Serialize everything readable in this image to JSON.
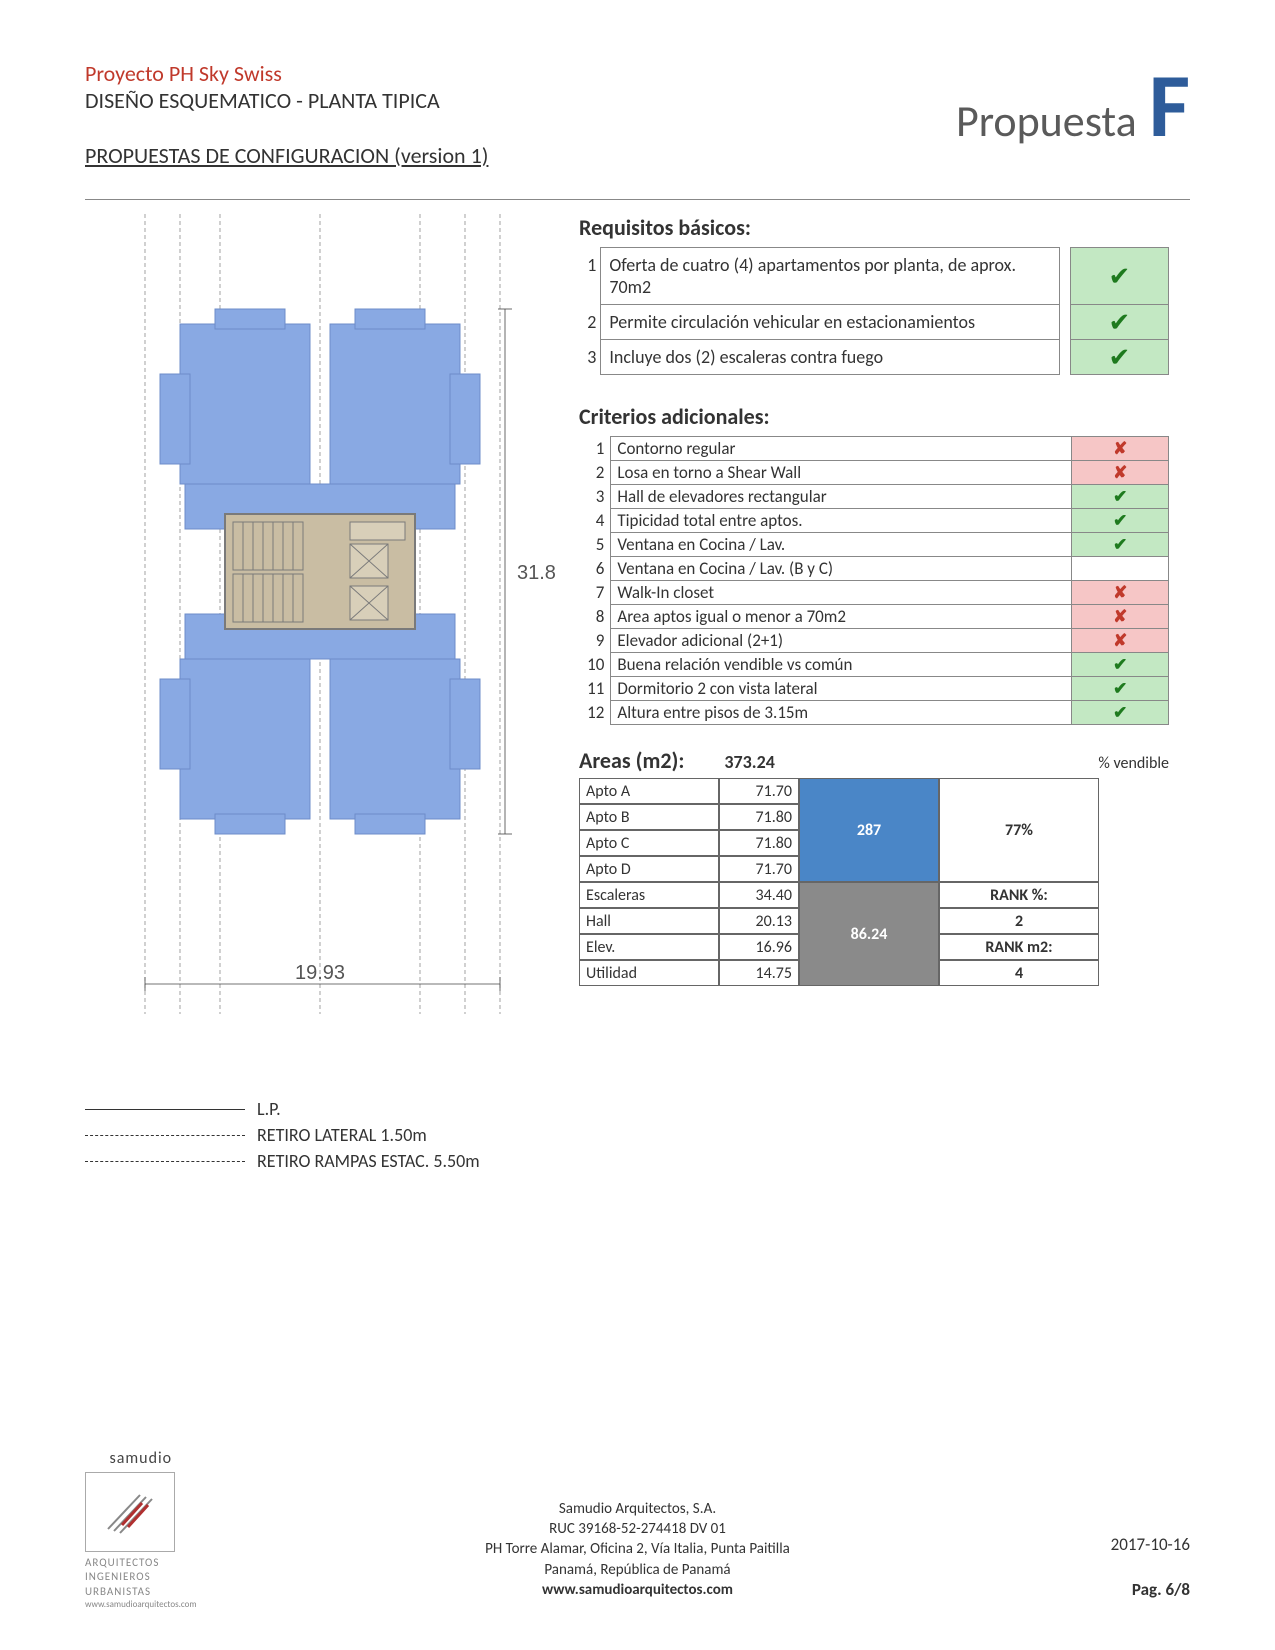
{
  "header": {
    "project": "Proyecto PH Sky Swiss",
    "subtitle": "DISEÑO ESQUEMATICO - PLANTA TIPICA",
    "config_line": "PROPUESTAS DE CONFIGURACION (version 1)",
    "propuesta_word": "Propuesta",
    "propuesta_letter": "F"
  },
  "plan": {
    "dim_width": "19.93",
    "dim_height": "31.85",
    "colors": {
      "apt": "#89a9e3",
      "apt_stroke": "#6d8cc8",
      "core": "#c9bda3",
      "core_stroke": "#8a8a8a",
      "bg": "#ffffff"
    }
  },
  "legend": {
    "l1": "L.P.",
    "l2": "RETIRO LATERAL 1.50m",
    "l3": "RETIRO RAMPAS ESTAC. 5.50m"
  },
  "requisitos": {
    "heading": "Requisitos básicos:",
    "rows": [
      {
        "n": "1",
        "text": "Oferta de cuatro (4) apartamentos por planta, de aprox. 70m2",
        "status": "ok"
      },
      {
        "n": "2",
        "text": "Permite circulación vehicular en estacionamientos",
        "status": "ok"
      },
      {
        "n": "3",
        "text": "Incluye dos (2) escaleras contra fuego",
        "status": "ok"
      }
    ]
  },
  "criterios": {
    "heading": "Criterios adicionales:",
    "rows": [
      {
        "n": "1",
        "text": "Contorno regular",
        "status": "no"
      },
      {
        "n": "2",
        "text": "Losa en torno a Shear Wall",
        "status": "no"
      },
      {
        "n": "3",
        "text": "Hall de elevadores rectangular",
        "status": "ok"
      },
      {
        "n": "4",
        "text": "Tipicidad total entre aptos.",
        "status": "ok"
      },
      {
        "n": "5",
        "text": "Ventana en Cocina / Lav.",
        "status": "ok"
      },
      {
        "n": "6",
        "text": "Ventana en Cocina / Lav. (B y C)",
        "status": "blank"
      },
      {
        "n": "7",
        "text": "Walk-In closet",
        "status": "no"
      },
      {
        "n": "8",
        "text": "Area aptos igual o menor a 70m2",
        "status": "no"
      },
      {
        "n": "9",
        "text": "Elevador adicional (2+1)",
        "status": "no"
      },
      {
        "n": "10",
        "text": "Buena relación vendible vs común",
        "status": "ok"
      },
      {
        "n": "11",
        "text": "Dormitorio 2 con vista lateral",
        "status": "ok"
      },
      {
        "n": "12",
        "text": "Altura entre pisos de 3.15m",
        "status": "ok"
      }
    ]
  },
  "areas": {
    "heading": "Areas (m2):",
    "total": "373.24",
    "pct_label": "% vendible",
    "rows_sellable": [
      {
        "label": "Apto A",
        "val": "71.70"
      },
      {
        "label": "Apto B",
        "val": "71.80"
      },
      {
        "label": "Apto C",
        "val": "71.80"
      },
      {
        "label": "Apto D",
        "val": "71.70"
      }
    ],
    "sellable_sum": "287",
    "sellable_pct": "77%",
    "rows_common": [
      {
        "label": "Escaleras",
        "val": "34.40"
      },
      {
        "label": "Hall",
        "val": "20.13"
      },
      {
        "label": "Elev.",
        "val": "16.96"
      },
      {
        "label": "Utilidad",
        "val": "14.75"
      }
    ],
    "common_sum": "86.24",
    "rank_pct_label": "RANK %:",
    "rank_pct_val": "2",
    "rank_m2_label": "RANK m2:",
    "rank_m2_val": "4",
    "colors": {
      "blue": "#4a86c7",
      "gray": "#8a8a8a"
    }
  },
  "footer": {
    "brand": "samudio",
    "tag1": "ARQUITECTOS",
    "tag2": "INGENIEROS",
    "tag3": "URBANISTAS",
    "url": "www.samudioarquitectos.com",
    "company": "Samudio Arquitectos, S.A.",
    "ruc": "RUC 39168-52-274418 DV 01",
    "address": "PH Torre Alamar, Oficina 2, Vía Italia, Punta Paitilla",
    "city": "Panamá, República de Panamá",
    "web": "www.samudioarquitectos.com",
    "date": "2017-10-16",
    "page": "Pag. 6/8"
  },
  "glyphs": {
    "check": "✔",
    "cross": "✘"
  }
}
